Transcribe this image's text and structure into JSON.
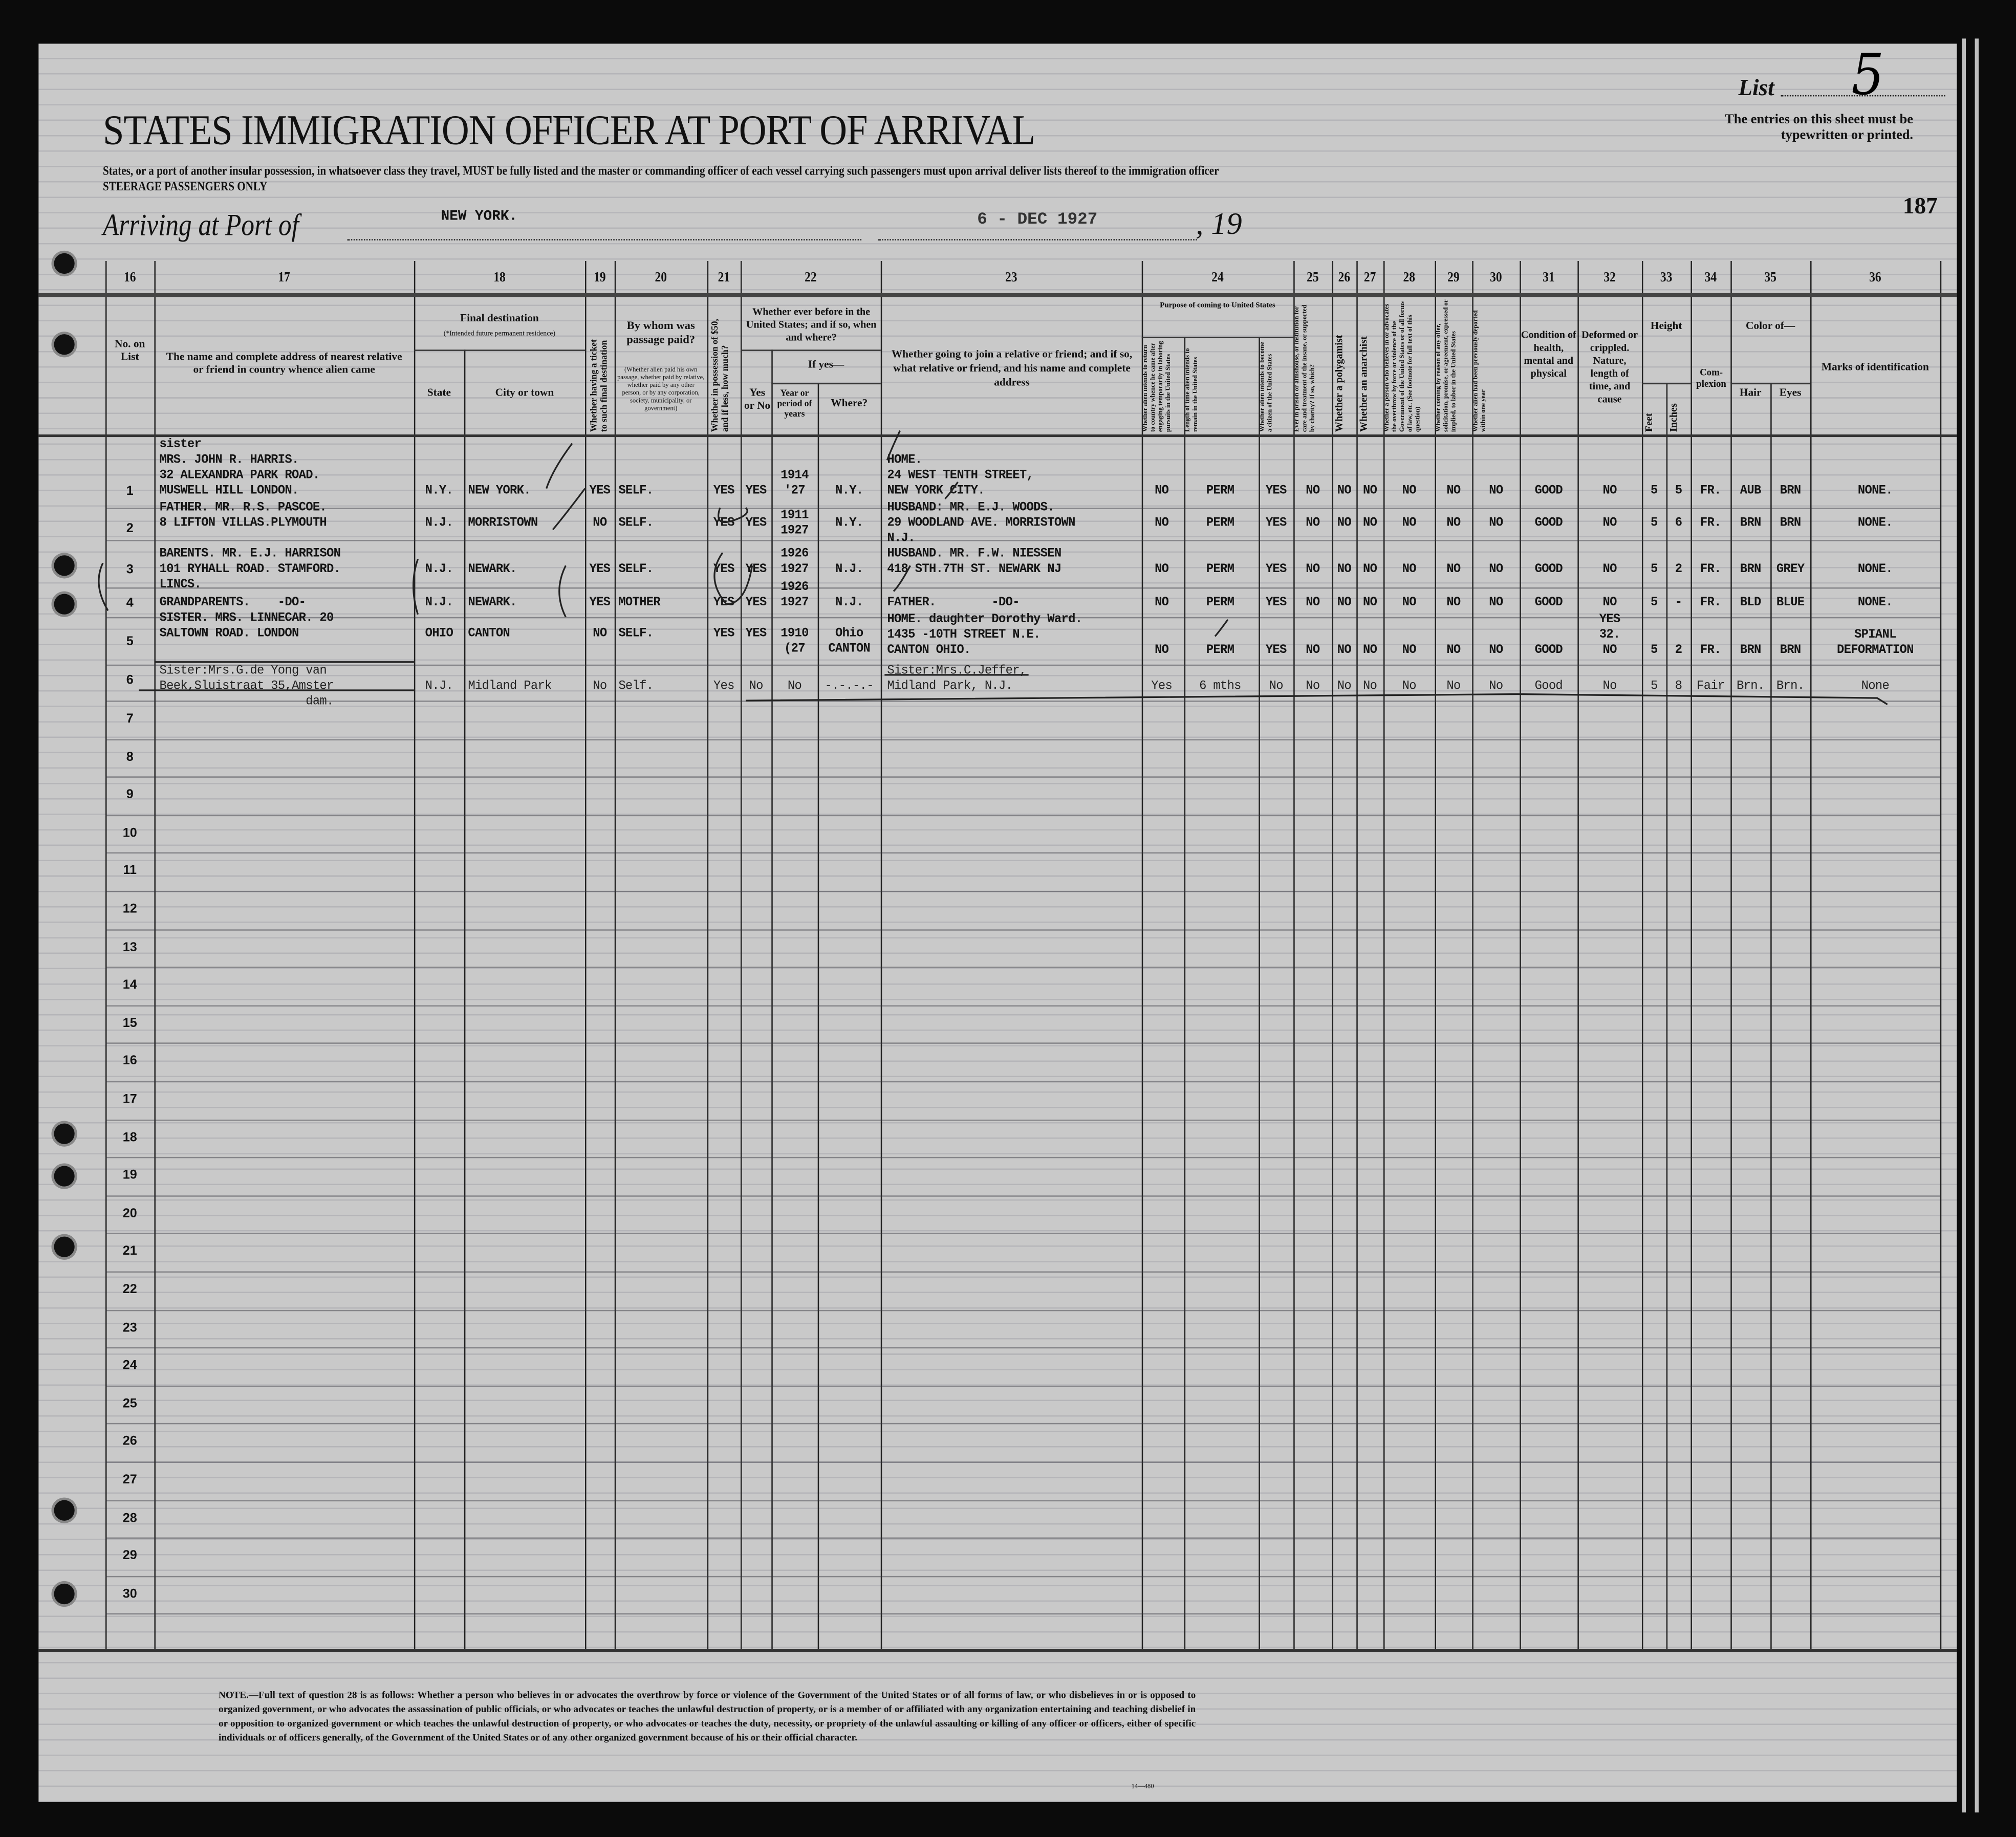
{
  "header": {
    "title": "STATES IMMIGRATION OFFICER AT PORT OF ARRIVAL",
    "instruction": "States, or a port of another insular possession, in whatsoever class they travel, MUST be fully listed and the master or commanding officer of each vessel carrying such passengers must upon arrival deliver lists thereof to the immigration officer",
    "class": "STEERAGE PASSENGERS ONLY",
    "arriving_label": "Arriving at Port of",
    "port": "NEW YORK.",
    "date_stamp": "6 - DEC 1927",
    "year_prefix": ", 19",
    "list_label": "List",
    "list_number": "5",
    "typewritten_note": "The entries on this sheet must be typewritten or printed.",
    "page_number": "187"
  },
  "columns": {
    "no": {
      "num": "16",
      "label": "No. on List"
    },
    "relative": {
      "num": "17",
      "label": "The name and complete address of nearest relative or friend in country whence alien came"
    },
    "dest": {
      "num": "18",
      "label": "Final destination",
      "sublabel": "(*Intended future permanent residence)",
      "state": "State",
      "city": "City or town"
    },
    "ticket": {
      "num": "19",
      "label": "Whether having a ticket to such final destination"
    },
    "paid": {
      "num": "20",
      "label": "By whom was passage paid?",
      "sublabel": "(Whether alien paid his own passage, whether paid by relative, whether paid by any other person, or by any corporation, society, municipality, or government)"
    },
    "money": {
      "num": "21",
      "label": "Whether in possession of $50, and if less, how much?"
    },
    "before": {
      "num": "22",
      "label": "Whether ever before in the United States; and if so, when and where?",
      "yesno": "Yes or No",
      "ifyes": "If yes—",
      "year": "Year or period of years",
      "where": "Where?"
    },
    "joining": {
      "num": "23",
      "label": "Whether going to join a relative or friend; and if so, what relative or friend, and his name and complete address"
    },
    "purpose": {
      "num": "24",
      "label": "Purpose of coming to United States",
      "return": "Whether alien intends to return to country whence he came after engaging temporarily in laboring pursuits in the United States",
      "length": "Length of time alien intends to remain in the United States",
      "citizen": "Whether alien intends to become a citizen of the United States"
    },
    "prison": {
      "num": "25",
      "label": "Ever in prison or almshouse, or institution for care and treatment of the insane, or supported by charity? If so, which?"
    },
    "polygamist": {
      "num": "26",
      "label": "Whether a polygamist"
    },
    "anarchist": {
      "num": "27",
      "label": "Whether an anarchist"
    },
    "q28": {
      "num": "28",
      "label": "Whether a person who believes in or advocates the overthrow by force or violence of the Government of the United States or of all forms of law, etc. (See footnote for full text of this question)"
    },
    "q29": {
      "num": "29",
      "label": "Whether coming by reason of any offer, solicitation, promise, or agreement, expressed or implied, to labor in the United States"
    },
    "deported": {
      "num": "30",
      "label": "Whether alien had been previously deported within one year"
    },
    "health": {
      "num": "31",
      "label": "Condition of health, mental and physical"
    },
    "deformed": {
      "num": "32",
      "label": "Deformed or crippled. Nature, length of time, and cause"
    },
    "height": {
      "num": "33",
      "label": "Height",
      "feet": "Feet",
      "inches": "Inches"
    },
    "complexion": {
      "num": "34",
      "label": "Com-plexion"
    },
    "color": {
      "num": "35",
      "label": "Color of—",
      "hair": "Hair",
      "eyes": "Eyes"
    },
    "marks": {
      "num": "36",
      "label": "Marks of identification"
    }
  },
  "row_numbers": [
    "1",
    "2",
    "3",
    "4",
    "5",
    "6",
    "7",
    "8",
    "9",
    "10",
    "11",
    "12",
    "13",
    "14",
    "15",
    "16",
    "17",
    "18",
    "19",
    "20",
    "21",
    "22",
    "23",
    "24",
    "25",
    "26",
    "27",
    "28",
    "29",
    "30"
  ],
  "rows": [
    {
      "relative": "sister\nMRS. JOHN R. HARRIS.\n32 ALEXANDRA PARK ROAD.\nMUSWELL HILL LONDON.",
      "state": "N.Y.",
      "city": "NEW YORK.",
      "ticket": "YES",
      "paid": "SELF.",
      "money": "YES",
      "before": "YES",
      "year": "1914\n'27",
      "where": "N.Y.",
      "joining": "HOME.\n24 WEST TENTH STREET,\nNEW YORK CITY.",
      "return": "NO",
      "length": "PERM",
      "citizen": "YES",
      "prison": "NO",
      "polygamist": "NO",
      "anarchist": "NO",
      "q28": "NO",
      "q29": "NO",
      "deported": "NO",
      "health": "GOOD",
      "deformed": "NO",
      "feet": "5",
      "inches": "5",
      "complexion": "FR.",
      "hair": "AUB",
      "eyes": "BRN",
      "marks": "NONE."
    },
    {
      "relative": "FATHER. MR. R.S. PASCOE.\n8 LIFTON VILLAS.PLYMOUTH",
      "state": "N.J.",
      "city": "MORRISTOWN",
      "ticket": "NO",
      "paid": "SELF.",
      "money": "YES",
      "before": "YES",
      "year": "1911\n1927",
      "where": "N.Y.",
      "joining": "HUSBAND: MR. E.J. WOODS.\n29 WOODLAND AVE. MORRISTOWN\nN.J.",
      "return": "NO",
      "length": "PERM",
      "citizen": "YES",
      "prison": "NO",
      "polygamist": "NO",
      "anarchist": "NO",
      "q28": "NO",
      "q29": "NO",
      "deported": "NO",
      "health": "GOOD",
      "deformed": "NO",
      "feet": "5",
      "inches": "6",
      "complexion": "FR.",
      "hair": "BRN",
      "eyes": "BRN",
      "marks": "NONE."
    },
    {
      "relative": "BARENTS. MR. E.J. HARRISON\n101 RYHALL ROAD. STAMFORD.\nLINCS.",
      "state": "N.J.",
      "city": "NEWARK.",
      "ticket": "YES",
      "paid": "SELF.",
      "money": "YES",
      "before": "YES",
      "year": "1926\n1927",
      "where": "N.J.",
      "joining": "HUSBAND. MR. F.W. NIESSEN\n418 STH.7TH ST. NEWARK NJ",
      "return": "NO",
      "length": "PERM",
      "citizen": "YES",
      "prison": "NO",
      "polygamist": "NO",
      "anarchist": "NO",
      "q28": "NO",
      "q29": "NO",
      "deported": "NO",
      "health": "GOOD",
      "deformed": "NO",
      "feet": "5",
      "inches": "2",
      "complexion": "FR.",
      "hair": "BRN",
      "eyes": "GREY",
      "marks": "NONE."
    },
    {
      "relative": "GRANDPARENTS.    -DO-",
      "state": "N.J.",
      "city": "NEWARK.",
      "ticket": "YES",
      "paid": "MOTHER",
      "money": "YES",
      "before": "YES",
      "year": "1926\n1927",
      "where": "N.J.",
      "joining": "FATHER.        -DO-",
      "return": "NO",
      "length": "PERM",
      "citizen": "YES",
      "prison": "NO",
      "polygamist": "NO",
      "anarchist": "NO",
      "q28": "NO",
      "q29": "NO",
      "deported": "NO",
      "health": "GOOD",
      "deformed": "NO",
      "feet": "5",
      "inches": "-",
      "complexion": "FR.",
      "hair": "BLD",
      "eyes": "BLUE",
      "marks": "NONE."
    },
    {
      "relative": "SISTER. MRS. LINNECAR. 20\nSALTOWN ROAD. LONDON",
      "state": "OHIO",
      "city": "CANTON",
      "ticket": "NO",
      "paid": "SELF.",
      "money": "YES",
      "before": "YES",
      "year": "1910\n(27",
      "where": "Ohio\nCANTON",
      "joining": "HOME. daughter Dorothy Ward.\n1435 -10TH STREET N.E.\nCANTON OHIO.",
      "return": "NO",
      "length": "PERM",
      "citizen": "YES",
      "prison": "NO",
      "polygamist": "NO",
      "anarchist": "NO",
      "q28": "NO",
      "q29": "NO",
      "deported": "NO",
      "health": "GOOD",
      "deformed": "YES\n32.\nNO",
      "feet": "5",
      "inches": "2",
      "complexion": "FR.",
      "hair": "BRN",
      "eyes": "BRN",
      "marks": "SPIANL\nDEFORMATION"
    },
    {
      "relative": "Sister:Mrs.G.de Yong van\nBeek,Sluistraat 35,Amster\n                     dam.",
      "state": "N.J.",
      "city": "Midland Park",
      "ticket": "No",
      "paid": "Self.",
      "money": "Yes",
      "before": "No",
      "year": "No",
      "where": "-.-.-.-",
      "joining": "Sister:Mrs.C.Jeffer,\nMidland Park, N.J.",
      "return": "Yes",
      "length": "6 mths",
      "citizen": "No",
      "prison": "No",
      "polygamist": "No",
      "anarchist": "No",
      "q28": "No",
      "q29": "No",
      "deported": "No",
      "health": "Good",
      "deformed": "No",
      "feet": "5",
      "inches": "8",
      "complexion": "Fair",
      "hair": "Brn.",
      "eyes": "Brn.",
      "marks": "None"
    }
  ],
  "footnote": "NOTE.—Full text of question 28 is as follows: Whether a person who believes in or advocates the overthrow by force or violence of the Government of the United States or of all forms of law, or who disbelieves in or is opposed to organized government, or who advocates the assassination of public officials, or who advocates or teaches the unlawful destruction of property, or is a member of or affiliated with any organization entertaining and teaching disbelief in or opposition to organized government or which teaches the unlawful destruction of property, or who advocates or teaches the duty, necessity, or propriety of the unlawful assaulting or killing of any officer or officers, either of specific individuals or of officers generally, of the Government of the United States or of any other organized government because of his or their official character.",
  "form_number": "14—480"
}
